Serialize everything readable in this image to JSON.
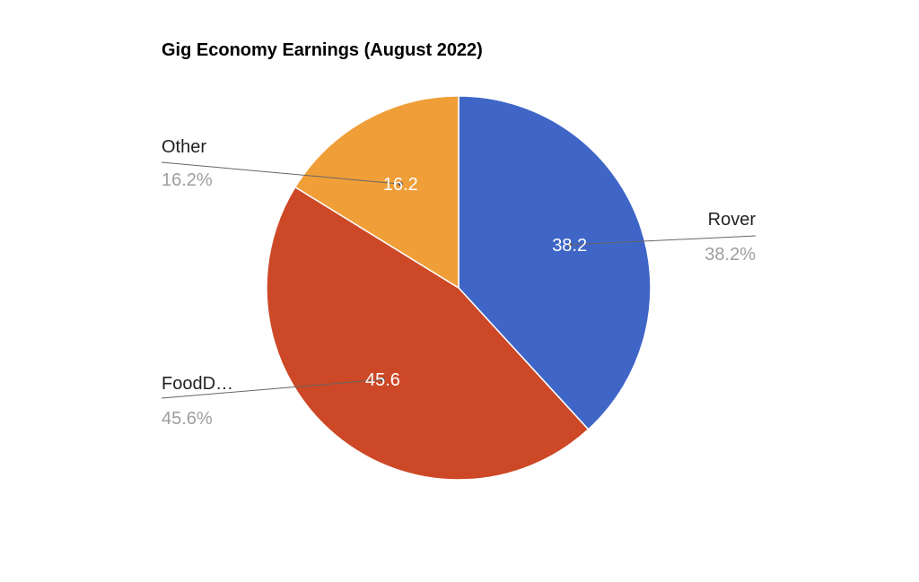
{
  "chart_data": {
    "type": "pie",
    "title": "Gig Economy Earnings (August 2022)",
    "slices": [
      {
        "name": "Rover",
        "legend_label": "Rover",
        "value": 38.2,
        "value_label": "38.2",
        "percent_label": "38.2%",
        "color": "#3f66c7"
      },
      {
        "name": "FoodDash",
        "legend_label": "FoodD…",
        "value": 45.6,
        "value_label": "45.6",
        "percent_label": "45.6%",
        "color": "#cc4826"
      },
      {
        "name": "Other",
        "legend_label": "Other",
        "value": 16.2,
        "value_label": "16.2",
        "percent_label": "16.2%",
        "color": "#f09e38"
      }
    ],
    "start_angle": "12 o'clock",
    "direction": "clockwise",
    "legend": "labels with leader lines"
  }
}
